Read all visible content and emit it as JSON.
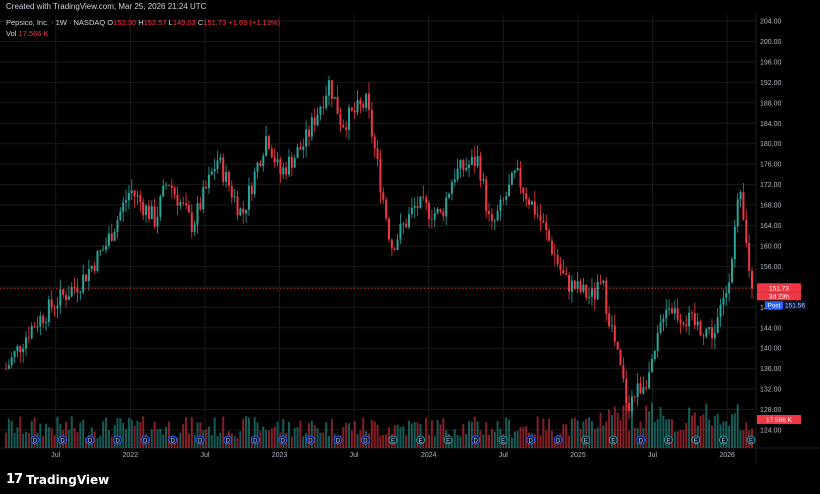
{
  "header": {
    "created_text": "Created with TradingView.com, Mar 25, 2026 21:24 UTC"
  },
  "legend": {
    "title": "Pepsico, Inc. · 1W · NASDAQ",
    "o_label": "O",
    "o_value": "152.30",
    "h_label": "H",
    "h_value": "152.57",
    "l_label": "L",
    "l_value": "149.03",
    "c_label": "C",
    "c_value": "151.73",
    "change": "+1.69 (+1.13%)",
    "vol_label": "Vol",
    "vol_value": "17.566 K"
  },
  "footer": {
    "logo_text": "TradingView",
    "logo_mark": "17"
  },
  "colors": {
    "up": "#26a69a",
    "down": "#f23645",
    "background": "#000000",
    "grid": "#1a1a1a",
    "axis_text": "#b2b5be",
    "post": "#2962ff"
  },
  "chart_data": {
    "type": "candlestick",
    "title": "Pepsico, Inc. · 1W · NASDAQ",
    "ylim": [
      124,
      204
    ],
    "y_ticks": [
      "124.00",
      "128.00",
      "132.00",
      "136.00",
      "140.00",
      "144.00",
      "148.00",
      "152.00",
      "156.00",
      "160.00",
      "164.00",
      "168.00",
      "172.00",
      "176.00",
      "180.00",
      "184.00",
      "188.00",
      "192.00",
      "196.00",
      "200.00",
      "204.00"
    ],
    "x_ticks": [
      {
        "label": "Jul",
        "date": "2021-07"
      },
      {
        "label": "2022",
        "date": "2022-01"
      },
      {
        "label": "Jul",
        "date": "2022-07"
      },
      {
        "label": "2023",
        "date": "2023-01"
      },
      {
        "label": "Jul",
        "date": "2023-07"
      },
      {
        "label": "2024",
        "date": "2024-01"
      },
      {
        "label": "Jul",
        "date": "2024-07"
      },
      {
        "label": "2025",
        "date": "2025-01"
      },
      {
        "label": "Jul",
        "date": "2025-07"
      },
      {
        "label": "2026",
        "date": "2026-01"
      }
    ],
    "date_range": [
      "2021-03",
      "2026-03"
    ],
    "price_anchors": [
      [
        "2021-03",
        136
      ],
      [
        "2021-05",
        144
      ],
      [
        "2021-07",
        149
      ],
      [
        "2021-09",
        153
      ],
      [
        "2021-11",
        160
      ],
      [
        "2022-01",
        171
      ],
      [
        "2022-03",
        165
      ],
      [
        "2022-04",
        173
      ],
      [
        "2022-06",
        164
      ],
      [
        "2022-08",
        177
      ],
      [
        "2022-10",
        166
      ],
      [
        "2022-12",
        182
      ],
      [
        "2023-01",
        174
      ],
      [
        "2023-03",
        180
      ],
      [
        "2023-05",
        192
      ],
      [
        "2023-06",
        184
      ],
      [
        "2023-08",
        188
      ],
      [
        "2023-10",
        160
      ],
      [
        "2023-12",
        168
      ],
      [
        "2024-02",
        166
      ],
      [
        "2024-03",
        174
      ],
      [
        "2024-05",
        177
      ],
      [
        "2024-06",
        163
      ],
      [
        "2024-08",
        174
      ],
      [
        "2024-10",
        165
      ],
      [
        "2024-12",
        153
      ],
      [
        "2025-02",
        150
      ],
      [
        "2025-03",
        152
      ],
      [
        "2025-05",
        129
      ],
      [
        "2025-07",
        136
      ],
      [
        "2025-08",
        149
      ],
      [
        "2025-10",
        145
      ],
      [
        "2025-12",
        143
      ],
      [
        "2026-01",
        152
      ],
      [
        "2026-02",
        170
      ],
      [
        "2026-03",
        151.7
      ]
    ],
    "last": {
      "close": 151.73,
      "label": "151.73",
      "countdown": "3d 23h",
      "post_label": "Post",
      "post_value": "151.56"
    },
    "volume": {
      "last_label": "17.566 K"
    },
    "events": [
      "D",
      "D",
      "D",
      "D",
      "D",
      "D",
      "D",
      "D",
      "D",
      "D",
      "D",
      "D",
      "D",
      "E",
      "E",
      "E",
      "D",
      "E",
      "D",
      "D",
      "E",
      "E",
      "D",
      "E",
      "E",
      "E",
      "E"
    ]
  }
}
